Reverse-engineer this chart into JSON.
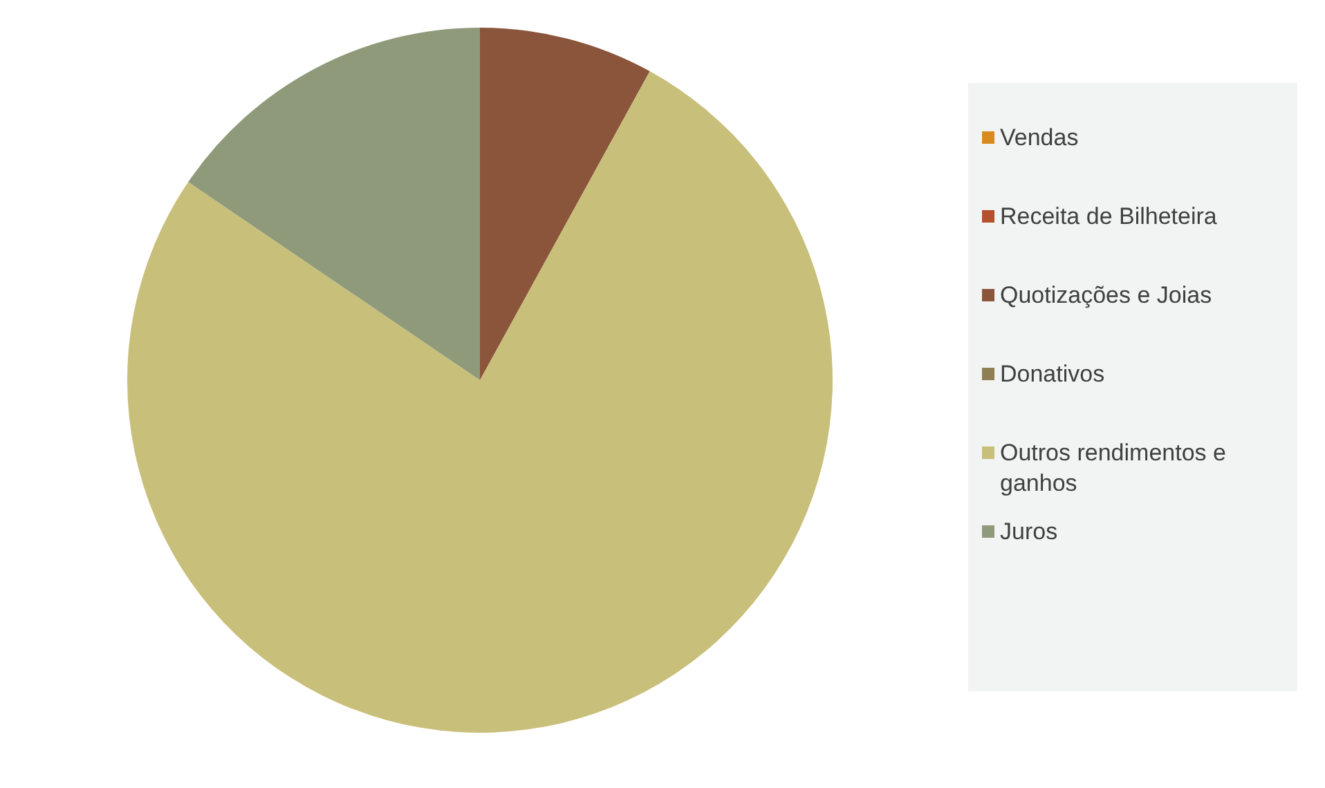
{
  "chart_data": {
    "type": "pie",
    "categories": [
      "Vendas",
      "Receita de Bilheteira",
      "Quotizações e Joias",
      "Donativos",
      "Outros rendimentos e ganhos",
      "Juros"
    ],
    "values": [
      0,
      0,
      8,
      0,
      76.5,
      15.5
    ],
    "colors": [
      "#d98a1c",
      "#b5502e",
      "#8b553b",
      "#8f7f55",
      "#c8bf7a",
      "#8f9a7a"
    ],
    "legend": "right"
  }
}
